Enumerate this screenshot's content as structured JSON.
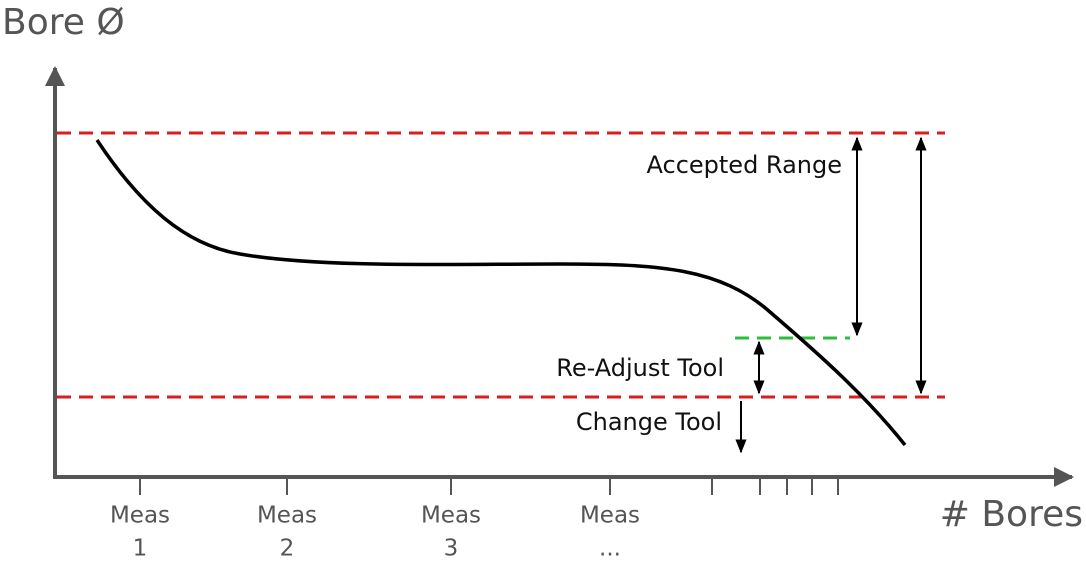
{
  "axes": {
    "y_label": "Bore Ø",
    "x_label": "# Bores"
  },
  "annotations": {
    "accepted_range": "Accepted Range",
    "readjust_tool": "Re-Adjust Tool",
    "change_tool": "Change Tool"
  },
  "measurements": [
    {
      "line1": "Meas",
      "line2": "1"
    },
    {
      "line1": "Meas",
      "line2": "2"
    },
    {
      "line1": "Meas",
      "line2": "3"
    },
    {
      "line1": "Meas",
      "line2": "..."
    }
  ]
}
